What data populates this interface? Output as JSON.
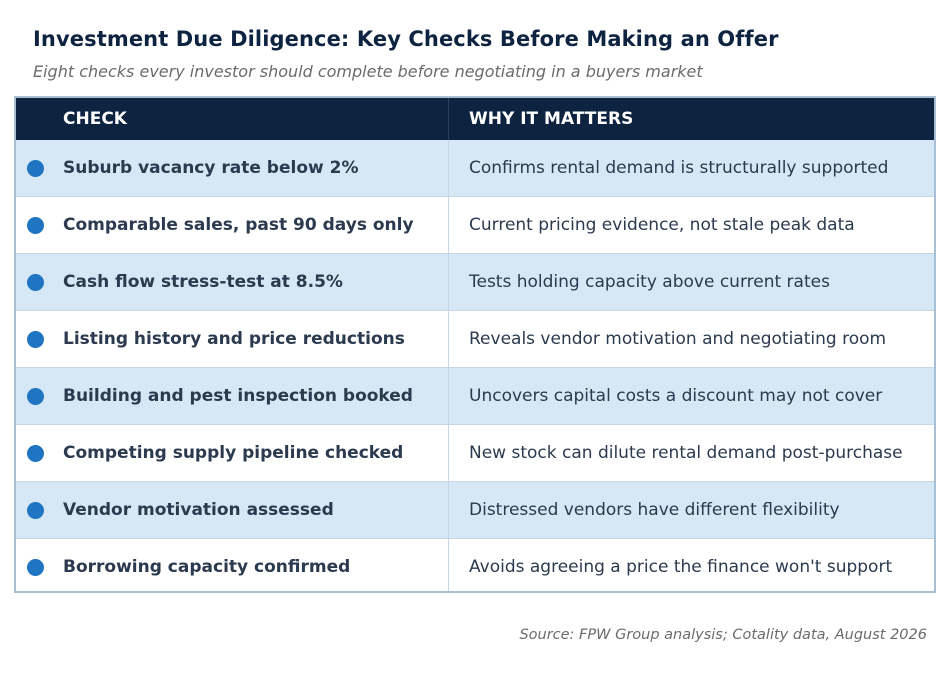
{
  "title": "Investment Due Diligence: Key Checks Before Making an Offer",
  "subtitle": "Eight checks every investor should complete before negotiating in a buyers market",
  "table": {
    "headers": {
      "check": "CHECK",
      "why": "WHY IT MATTERS"
    },
    "rows": [
      {
        "check": "Suburb vacancy rate below 2%",
        "why": "Confirms rental demand is structurally supported"
      },
      {
        "check": "Comparable sales, past 90 days only",
        "why": "Current pricing evidence, not stale peak data"
      },
      {
        "check": "Cash flow stress-test at 8.5%",
        "why": "Tests holding capacity above current rates"
      },
      {
        "check": "Listing history and price reductions",
        "why": "Reveals vendor motivation and negotiating room"
      },
      {
        "check": "Building and pest inspection booked",
        "why": "Uncovers capital costs a discount may not cover"
      },
      {
        "check": "Competing supply pipeline checked",
        "why": "New stock can dilute rental demand post-purchase"
      },
      {
        "check": "Vendor motivation assessed",
        "why": "Distressed vendors have different flexibility"
      },
      {
        "check": "Borrowing capacity confirmed",
        "why": "Avoids agreeing a price the finance won't support"
      }
    ]
  },
  "source": "Source: FPW Group analysis; Cotality data, August 2026",
  "colors": {
    "header_bg": "#0e2340",
    "row_alt_bg": "#d6e7f6",
    "bullet": "#1f75c1",
    "text": "#2b3a4e",
    "title": "#0e2340"
  },
  "icons": {
    "row_bullet": "circle-bullet-icon"
  }
}
